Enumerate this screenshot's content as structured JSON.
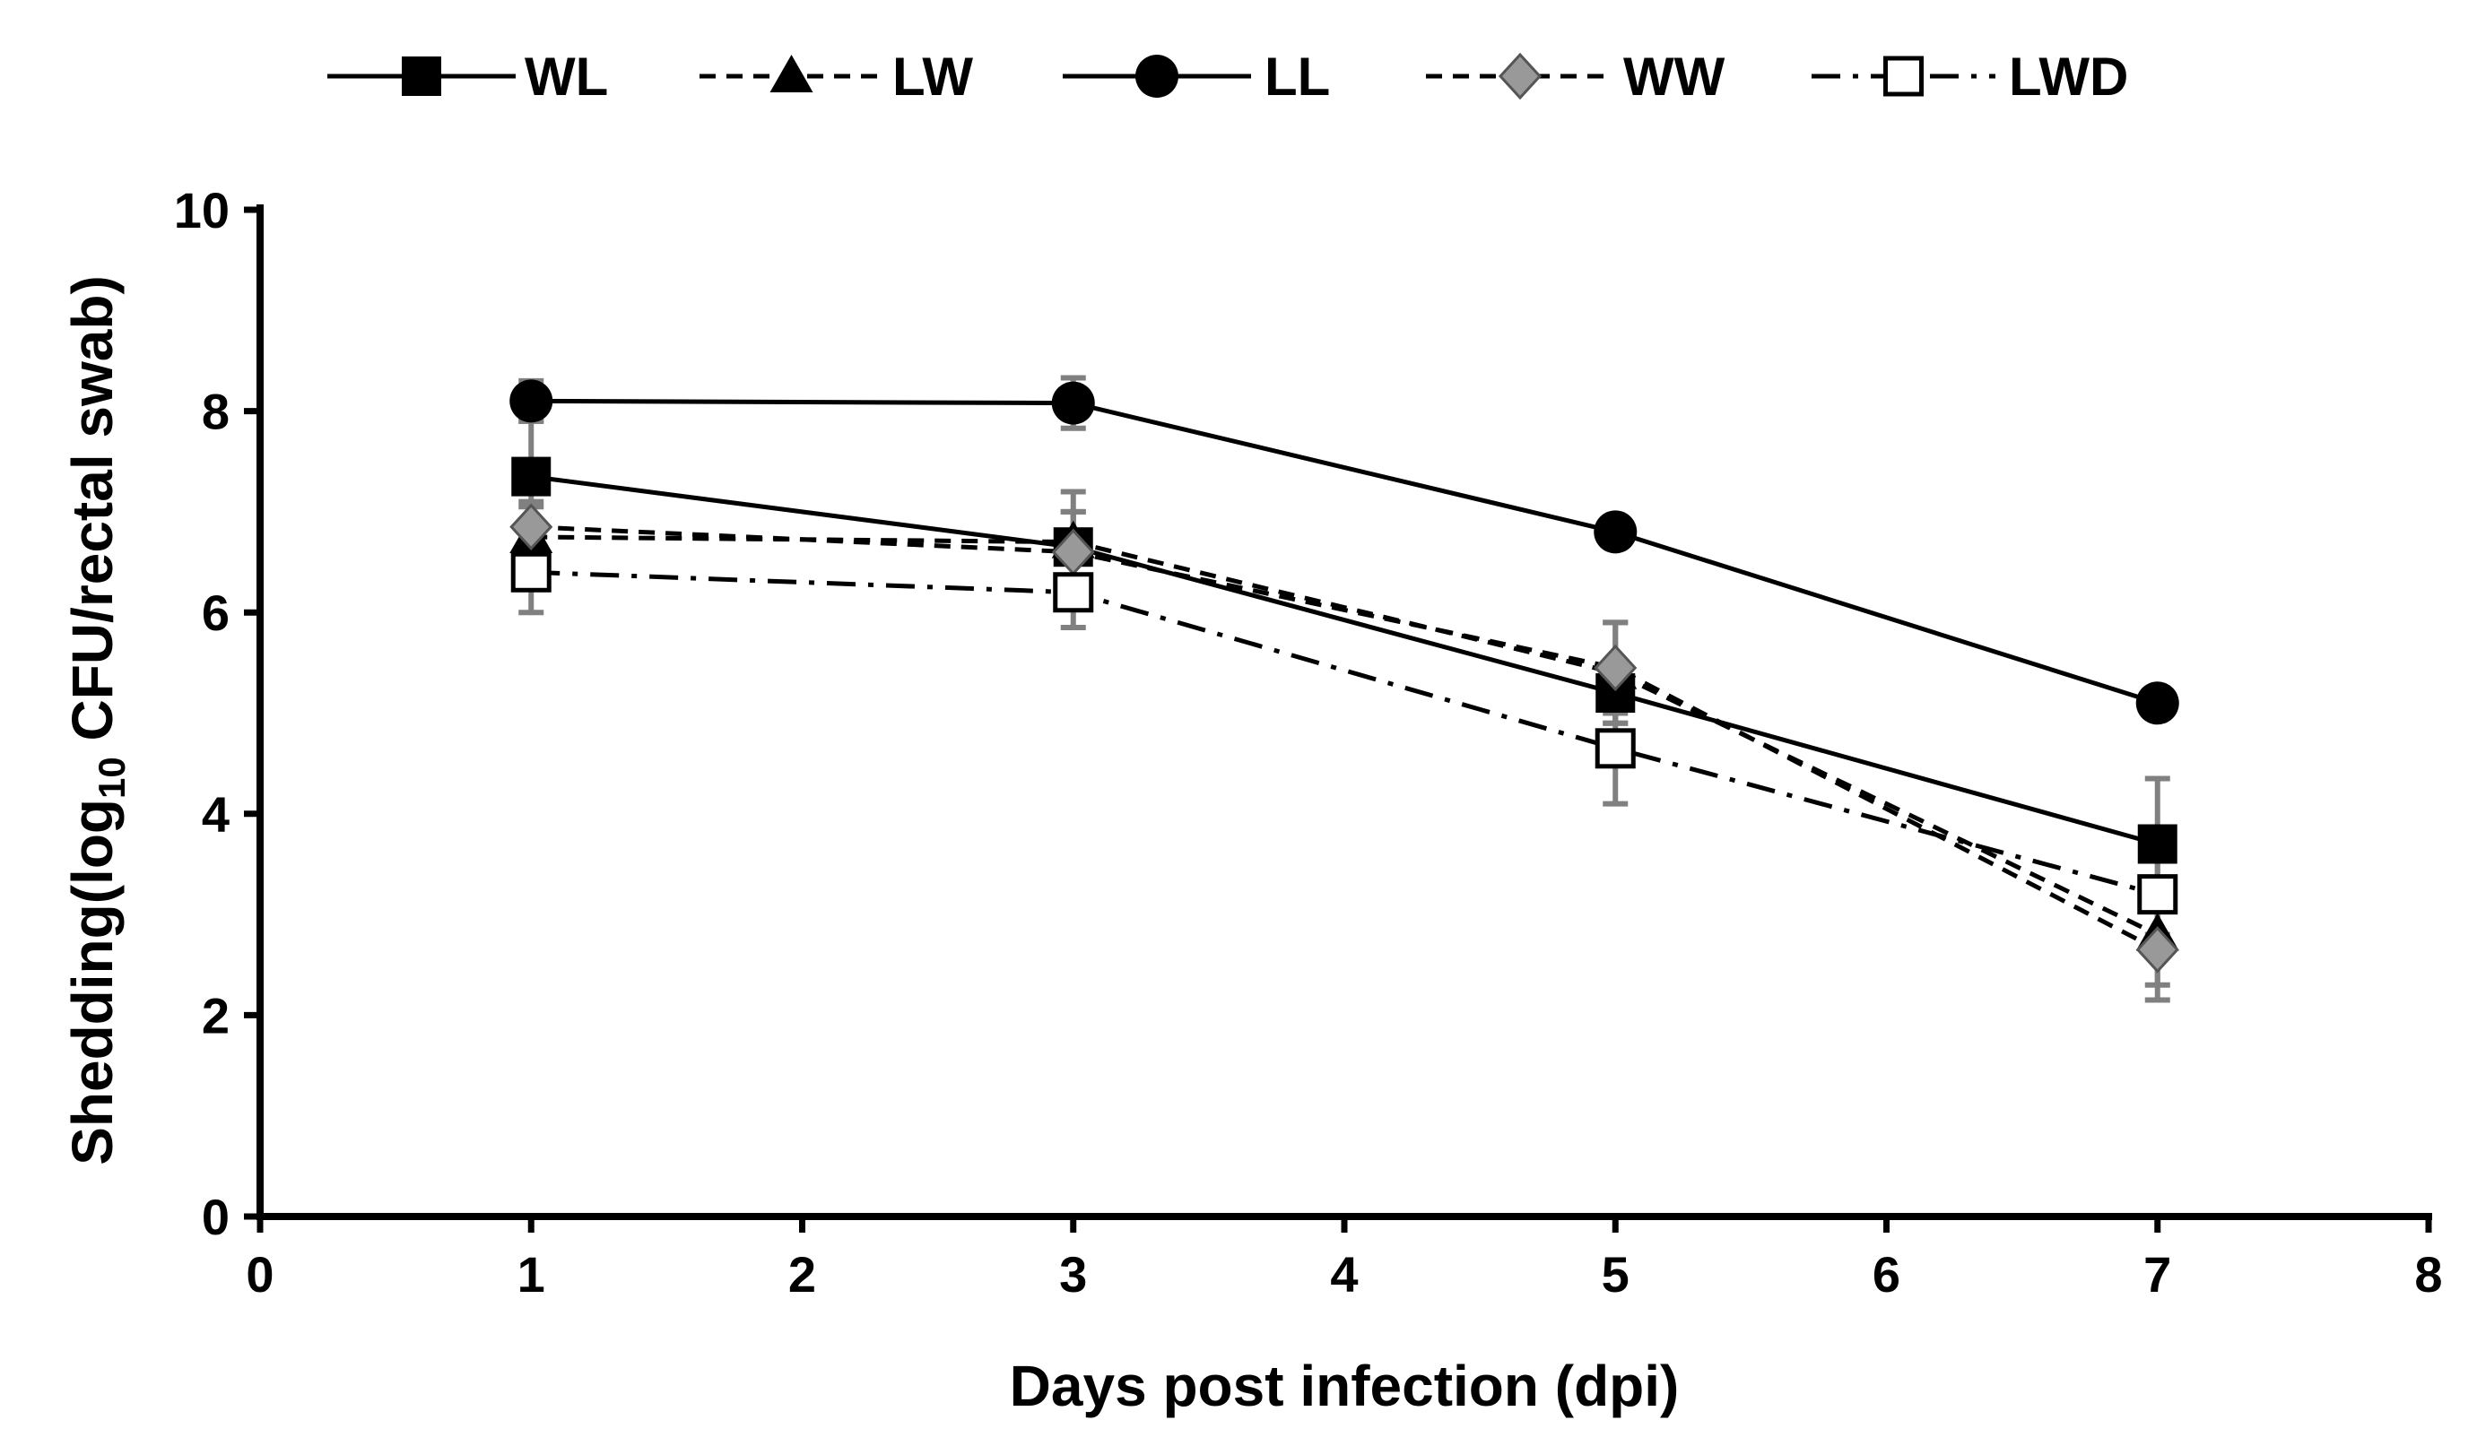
{
  "chart_data": {
    "type": "line",
    "xlabel": "Days post infection (dpi)",
    "ylabel": {
      "prefix": "Shedding(log",
      "subscript": "10",
      "suffix": " CFU/rectal swab)"
    },
    "xlim": [
      0,
      8
    ],
    "ylim": [
      0,
      10
    ],
    "x_ticks": [
      0,
      1,
      2,
      3,
      4,
      5,
      6,
      7,
      8
    ],
    "y_ticks": [
      0,
      2,
      4,
      6,
      8,
      10
    ],
    "grid": false,
    "legend_position": "top",
    "x": [
      1,
      3,
      5,
      7
    ],
    "series": [
      {
        "name": "WL",
        "values": [
          7.35,
          6.65,
          5.2,
          3.7
        ],
        "errors": [
          0.55,
          0.35,
          0.3,
          0.65
        ],
        "marker": "square-filled",
        "line": "solid",
        "color": "#000000"
      },
      {
        "name": "LW",
        "values": [
          6.75,
          6.7,
          5.4,
          2.8
        ],
        "errors": [
          0.3,
          0.5,
          0.5,
          0.5
        ],
        "marker": "triangle-filled",
        "line": "dashed",
        "color": "#000000"
      },
      {
        "name": "LL",
        "values": [
          8.1,
          8.08,
          6.8,
          5.1
        ],
        "errors": [
          0.2,
          0.25,
          0.1,
          0.1
        ],
        "marker": "circle-filled",
        "line": "solid",
        "color": "#000000"
      },
      {
        "name": "WW",
        "values": [
          6.85,
          6.6,
          5.45,
          2.65
        ],
        "errors": [
          0.25,
          0.4,
          0.45,
          0.5
        ],
        "marker": "diamond-gray",
        "line": "dashed",
        "color": "#999999"
      },
      {
        "name": "LWD",
        "values": [
          6.4,
          6.2,
          4.65,
          3.2
        ],
        "errors": [
          0.4,
          0.35,
          0.55,
          0.4
        ],
        "marker": "square-open",
        "line": "dash-dot",
        "color": "#000000"
      }
    ]
  }
}
